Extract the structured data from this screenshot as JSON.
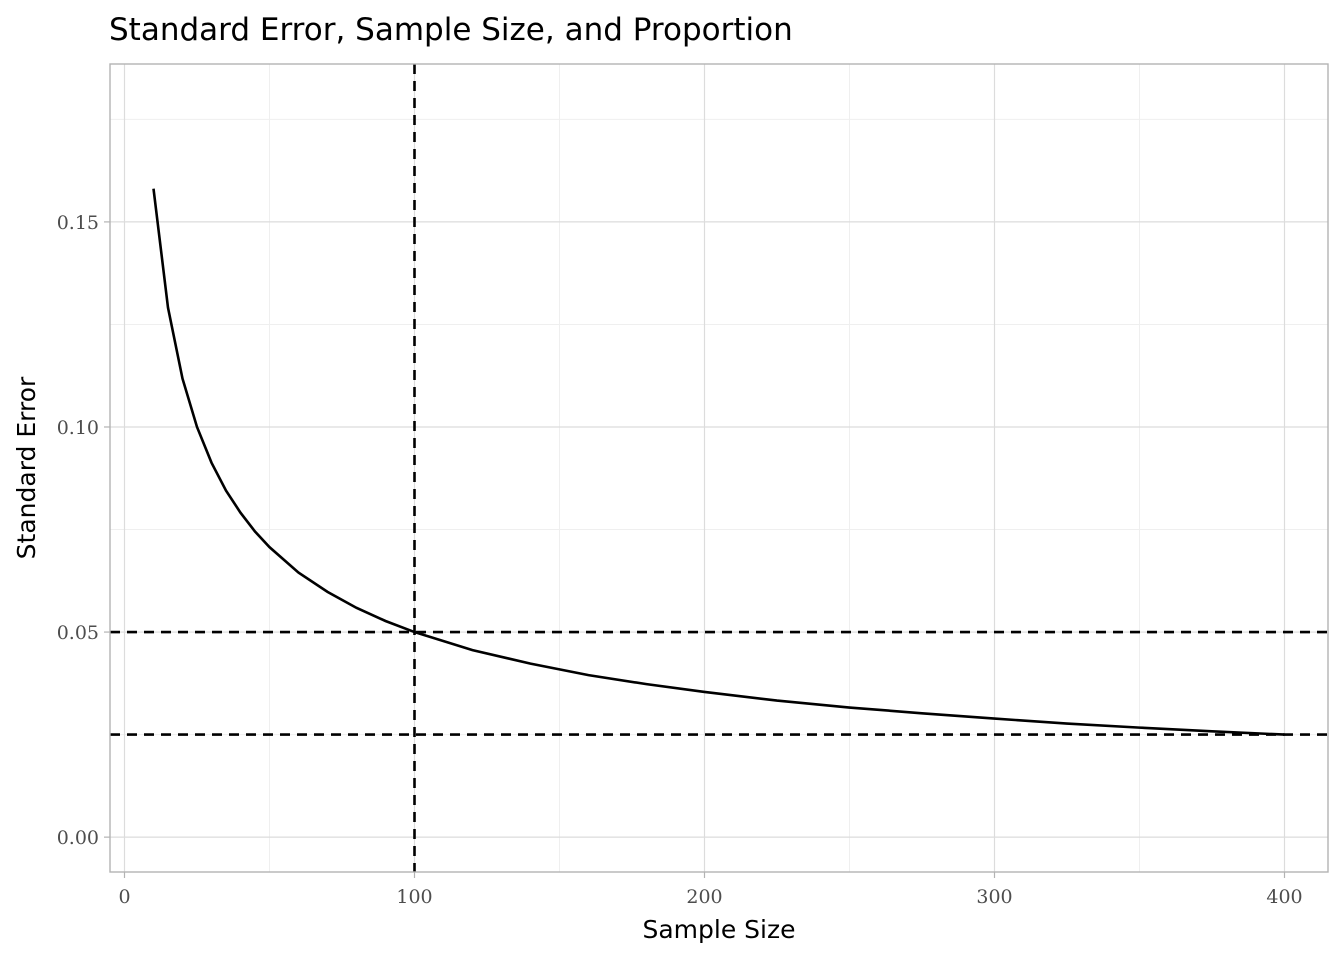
{
  "chart_data": {
    "type": "line",
    "title": "Standard Error, Sample Size, and Proportion",
    "xlabel": "Sample Size",
    "ylabel": "Standard Error",
    "xlim": [
      -5,
      415
    ],
    "ylim": [
      -0.0085,
      0.1885
    ],
    "x_ticks": [
      0,
      100,
      200,
      300,
      400
    ],
    "x_tick_labels": [
      "0",
      "100",
      "200",
      "300",
      "400"
    ],
    "y_ticks": [
      0.0,
      0.05,
      0.1,
      0.15
    ],
    "y_tick_labels": [
      "0.00",
      "0.05",
      "0.10",
      "0.15"
    ],
    "grid": true,
    "series": [
      {
        "x": [
          10,
          15,
          20,
          25,
          30,
          35,
          40,
          45,
          50,
          60,
          70,
          80,
          90,
          100,
          120,
          140,
          160,
          180,
          200,
          225,
          250,
          275,
          300,
          325,
          350,
          375,
          400
        ],
        "values": [
          0.1581,
          0.1291,
          0.1118,
          0.1,
          0.0913,
          0.0845,
          0.0791,
          0.0745,
          0.0707,
          0.0645,
          0.0598,
          0.0559,
          0.0527,
          0.05,
          0.0456,
          0.0423,
          0.0395,
          0.0373,
          0.0354,
          0.0333,
          0.0316,
          0.0302,
          0.0289,
          0.0277,
          0.0267,
          0.0258,
          0.025
        ]
      }
    ],
    "reference_lines": [
      {
        "orientation": "vertical",
        "value": 100
      },
      {
        "orientation": "horizontal",
        "value": 0.05
      },
      {
        "orientation": "horizontal",
        "value": 0.025
      }
    ]
  }
}
